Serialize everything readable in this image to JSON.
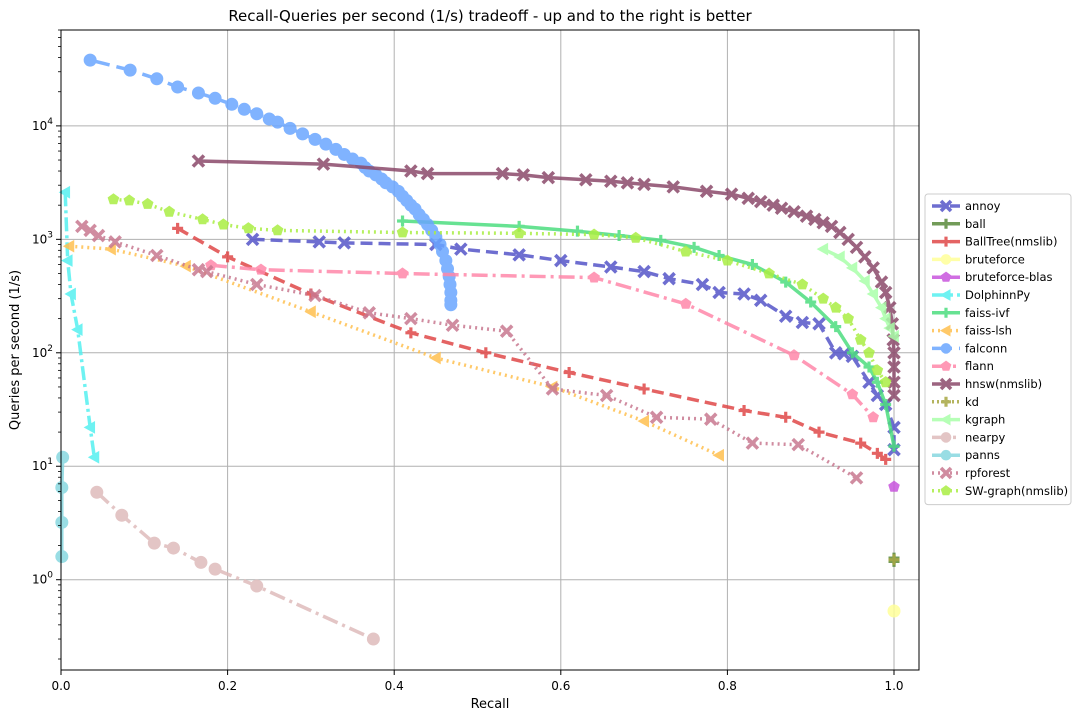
{
  "chart_data": {
    "type": "line",
    "title": "Recall-Queries per second (1/s) tradeoff - up and to the right is better",
    "xlabel": "Recall",
    "ylabel": "Queries per second (1/s)",
    "xlim": [
      0.0,
      1.03
    ],
    "ylim": [
      0.16,
      70000
    ],
    "yscale": "log",
    "grid": true,
    "legend_position": "right",
    "x_ticks": [
      {
        "value": 0.0,
        "label": "0.0"
      },
      {
        "value": 0.2,
        "label": "0.2"
      },
      {
        "value": 0.4,
        "label": "0.4"
      },
      {
        "value": 0.6,
        "label": "0.6"
      },
      {
        "value": 0.8,
        "label": "0.8"
      },
      {
        "value": 1.0,
        "label": "1.0"
      }
    ],
    "y_ticks": [
      {
        "value": 1,
        "base": "10",
        "exp": "0"
      },
      {
        "value": 10,
        "base": "10",
        "exp": "1"
      },
      {
        "value": 100,
        "base": "10",
        "exp": "2"
      },
      {
        "value": 1000,
        "base": "10",
        "exp": "3"
      },
      {
        "value": 10000,
        "base": "10",
        "exp": "4"
      }
    ],
    "series": [
      {
        "name": "annoy",
        "color": "#5555c8",
        "dash": "12,6",
        "marker": "x",
        "points": [
          [
            0.23,
            1000
          ],
          [
            0.31,
            950
          ],
          [
            0.34,
            930
          ],
          [
            0.45,
            900
          ],
          [
            0.48,
            820
          ],
          [
            0.55,
            730
          ],
          [
            0.6,
            650
          ],
          [
            0.66,
            570
          ],
          [
            0.7,
            520
          ],
          [
            0.73,
            450
          ],
          [
            0.77,
            400
          ],
          [
            0.79,
            340
          ],
          [
            0.82,
            330
          ],
          [
            0.84,
            290
          ],
          [
            0.87,
            210
          ],
          [
            0.89,
            185
          ],
          [
            0.91,
            180
          ],
          [
            0.93,
            100
          ],
          [
            0.94,
            98
          ],
          [
            0.95,
            93
          ],
          [
            0.97,
            55
          ],
          [
            0.98,
            42
          ],
          [
            0.99,
            35
          ],
          [
            1.0,
            22
          ],
          [
            1.0,
            14
          ]
        ]
      },
      {
        "name": "ball",
        "color": "#5a8a3c",
        "dash": "",
        "marker": "plus",
        "points": [
          [
            1.0,
            1.55
          ],
          [
            1.0,
            1.45
          ]
        ]
      },
      {
        "name": "BallTree(nmslib)",
        "color": "#e04848",
        "dash": "12,6",
        "marker": "plus",
        "points": [
          [
            0.14,
            1250
          ],
          [
            0.2,
            700
          ],
          [
            0.3,
            330
          ],
          [
            0.42,
            150
          ],
          [
            0.51,
            100
          ],
          [
            0.61,
            67
          ],
          [
            0.7,
            48
          ],
          [
            0.82,
            31
          ],
          [
            0.87,
            27
          ],
          [
            0.91,
            20
          ],
          [
            0.96,
            16
          ],
          [
            0.98,
            13
          ],
          [
            0.99,
            11.5
          ]
        ]
      },
      {
        "name": "bruteforce",
        "color": "#ffff99",
        "dash": "",
        "marker": "circle",
        "points": [
          [
            1.0,
            0.53
          ]
        ]
      },
      {
        "name": "bruteforce-blas",
        "color": "#c855dd",
        "dash": "",
        "marker": "pentagon",
        "points": [
          [
            1.0,
            6.6
          ]
        ]
      },
      {
        "name": "DolphinnPy",
        "color": "#55f0f0",
        "dash": "14,4,3,4",
        "marker": "triangle-left",
        "points": [
          [
            0.005,
            2600
          ],
          [
            0.008,
            650
          ],
          [
            0.012,
            330
          ],
          [
            0.02,
            160
          ],
          [
            0.035,
            22
          ],
          [
            0.04,
            12
          ]
        ]
      },
      {
        "name": "faiss-ivf",
        "color": "#4ddd7f",
        "dash": "",
        "marker": "plus",
        "points": [
          [
            0.41,
            1450
          ],
          [
            0.55,
            1300
          ],
          [
            0.62,
            1180
          ],
          [
            0.67,
            1080
          ],
          [
            0.72,
            980
          ],
          [
            0.76,
            850
          ],
          [
            0.79,
            720
          ],
          [
            0.83,
            600
          ],
          [
            0.87,
            420
          ],
          [
            0.9,
            280
          ],
          [
            0.93,
            170
          ],
          [
            0.95,
            100
          ],
          [
            0.97,
            75
          ],
          [
            0.98,
            55
          ],
          [
            0.99,
            35
          ],
          [
            1.0,
            15
          ]
        ]
      },
      {
        "name": "faiss-lsh",
        "color": "#ffc050",
        "dash": "2,4",
        "marker": "triangle-left",
        "points": [
          [
            0.01,
            870
          ],
          [
            0.06,
            820
          ],
          [
            0.15,
            580
          ],
          [
            0.3,
            230
          ],
          [
            0.45,
            90
          ],
          [
            0.59,
            50
          ],
          [
            0.7,
            25
          ],
          [
            0.79,
            12.5
          ]
        ]
      },
      {
        "name": "falconn",
        "color": "#6aa6ff",
        "dash": "20,7",
        "marker": "circle",
        "points": [
          [
            0.035,
            38000
          ],
          [
            0.083,
            31000
          ],
          [
            0.115,
            26000
          ],
          [
            0.14,
            22000
          ],
          [
            0.165,
            19500
          ],
          [
            0.185,
            17500
          ],
          [
            0.205,
            15500
          ],
          [
            0.22,
            14000
          ],
          [
            0.235,
            12800
          ],
          [
            0.25,
            11500
          ],
          [
            0.26,
            10800
          ],
          [
            0.275,
            9500
          ],
          [
            0.29,
            8500
          ],
          [
            0.305,
            7600
          ],
          [
            0.318,
            6900
          ],
          [
            0.33,
            6200
          ],
          [
            0.34,
            5600
          ],
          [
            0.35,
            5100
          ],
          [
            0.36,
            4700
          ],
          [
            0.365,
            4300
          ],
          [
            0.37,
            4000
          ],
          [
            0.378,
            3700
          ],
          [
            0.385,
            3400
          ],
          [
            0.39,
            3150
          ],
          [
            0.398,
            2900
          ],
          [
            0.405,
            2650
          ],
          [
            0.41,
            2400
          ],
          [
            0.415,
            2200
          ],
          [
            0.42,
            2000
          ],
          [
            0.425,
            1850
          ],
          [
            0.43,
            1650
          ],
          [
            0.435,
            1500
          ],
          [
            0.44,
            1350
          ],
          [
            0.445,
            1200
          ],
          [
            0.45,
            1050
          ],
          [
            0.455,
            900
          ],
          [
            0.458,
            780
          ],
          [
            0.462,
            650
          ],
          [
            0.464,
            550
          ],
          [
            0.466,
            470
          ],
          [
            0.467,
            400
          ],
          [
            0.468,
            340
          ],
          [
            0.468,
            290
          ],
          [
            0.468,
            265
          ]
        ]
      },
      {
        "name": "flann",
        "color": "#ff88aa",
        "dash": "16,5,3,5",
        "marker": "pentagon",
        "points": [
          [
            0.18,
            590
          ],
          [
            0.24,
            540
          ],
          [
            0.41,
            500
          ],
          [
            0.64,
            460
          ],
          [
            0.75,
            270
          ],
          [
            0.88,
            95
          ],
          [
            0.95,
            43
          ],
          [
            0.975,
            27
          ]
        ]
      },
      {
        "name": "hnsw(nmslib)",
        "color": "#8b4a6b",
        "dash": "",
        "marker": "x",
        "points": [
          [
            0.165,
            4900
          ],
          [
            0.315,
            4600
          ],
          [
            0.42,
            4000
          ],
          [
            0.44,
            3800
          ],
          [
            0.53,
            3800
          ],
          [
            0.555,
            3700
          ],
          [
            0.585,
            3500
          ],
          [
            0.63,
            3350
          ],
          [
            0.66,
            3250
          ],
          [
            0.68,
            3150
          ],
          [
            0.7,
            3050
          ],
          [
            0.735,
            2900
          ],
          [
            0.775,
            2650
          ],
          [
            0.805,
            2500
          ],
          [
            0.825,
            2300
          ],
          [
            0.84,
            2150
          ],
          [
            0.855,
            2000
          ],
          [
            0.865,
            1880
          ],
          [
            0.88,
            1750
          ],
          [
            0.895,
            1600
          ],
          [
            0.905,
            1500
          ],
          [
            0.915,
            1400
          ],
          [
            0.925,
            1300
          ],
          [
            0.935,
            1150
          ],
          [
            0.945,
            1000
          ],
          [
            0.955,
            850
          ],
          [
            0.965,
            700
          ],
          [
            0.975,
            560
          ],
          [
            0.985,
            420
          ],
          [
            0.99,
            340
          ],
          [
            0.995,
            250
          ],
          [
            0.998,
            180
          ],
          [
            0.999,
            130
          ],
          [
            1.0,
            100
          ],
          [
            1.0,
            75
          ],
          [
            1.0,
            55
          ],
          [
            1.0,
            42
          ]
        ]
      },
      {
        "name": "kd",
        "color": "#a8a844",
        "dash": "2,3",
        "marker": "plus",
        "points": [
          [
            1.0,
            1.5
          ]
        ]
      },
      {
        "name": "kgraph",
        "color": "#aaffaa",
        "dash": "",
        "marker": "triangle-left",
        "points": [
          [
            0.915,
            820
          ],
          [
            0.935,
            700
          ],
          [
            0.95,
            560
          ],
          [
            0.965,
            430
          ],
          [
            0.975,
            330
          ],
          [
            0.985,
            250
          ],
          [
            0.99,
            200
          ],
          [
            0.995,
            165
          ],
          [
            1.0,
            140
          ]
        ]
      },
      {
        "name": "nearpy",
        "color": "#dfbcbc",
        "dash": "16,5,3,5",
        "marker": "circle",
        "points": [
          [
            0.043,
            5.9
          ],
          [
            0.073,
            3.7
          ],
          [
            0.112,
            2.1
          ],
          [
            0.135,
            1.9
          ],
          [
            0.168,
            1.42
          ],
          [
            0.185,
            1.24
          ],
          [
            0.235,
            0.88
          ],
          [
            0.375,
            0.3
          ]
        ]
      },
      {
        "name": "panns",
        "color": "#88d8e0",
        "dash": "",
        "marker": "circle",
        "points": [
          [
            0.002,
            12
          ],
          [
            0.001,
            6.5
          ],
          [
            0.001,
            3.2
          ],
          [
            0.001,
            1.6
          ]
        ]
      },
      {
        "name": "rpforest",
        "color": "#c87890",
        "dash": "2,4",
        "marker": "x",
        "points": [
          [
            0.025,
            1300
          ],
          [
            0.035,
            1200
          ],
          [
            0.045,
            1080
          ],
          [
            0.065,
            950
          ],
          [
            0.115,
            720
          ],
          [
            0.165,
            540
          ],
          [
            0.175,
            520
          ],
          [
            0.235,
            400
          ],
          [
            0.305,
            320
          ],
          [
            0.37,
            225
          ],
          [
            0.42,
            200
          ],
          [
            0.47,
            175
          ],
          [
            0.535,
            155
          ],
          [
            0.59,
            48
          ],
          [
            0.655,
            42
          ],
          [
            0.715,
            27
          ],
          [
            0.78,
            26
          ],
          [
            0.83,
            16
          ],
          [
            0.885,
            15.5
          ],
          [
            0.955,
            7.9
          ]
        ]
      },
      {
        "name": "SW-graph(nmslib)",
        "color": "#aaee44",
        "dash": "2,4",
        "marker": "pentagon",
        "points": [
          [
            0.063,
            2250
          ],
          [
            0.082,
            2200
          ],
          [
            0.104,
            2050
          ],
          [
            0.13,
            1750
          ],
          [
            0.17,
            1500
          ],
          [
            0.195,
            1350
          ],
          [
            0.225,
            1250
          ],
          [
            0.26,
            1200
          ],
          [
            0.41,
            1150
          ],
          [
            0.55,
            1130
          ],
          [
            0.64,
            1100
          ],
          [
            0.69,
            1030
          ],
          [
            0.75,
            780
          ],
          [
            0.8,
            650
          ],
          [
            0.85,
            500
          ],
          [
            0.89,
            400
          ],
          [
            0.915,
            300
          ],
          [
            0.93,
            250
          ],
          [
            0.945,
            200
          ],
          [
            0.96,
            130
          ],
          [
            0.97,
            100
          ],
          [
            0.98,
            70
          ],
          [
            0.99,
            55
          ]
        ]
      }
    ]
  }
}
